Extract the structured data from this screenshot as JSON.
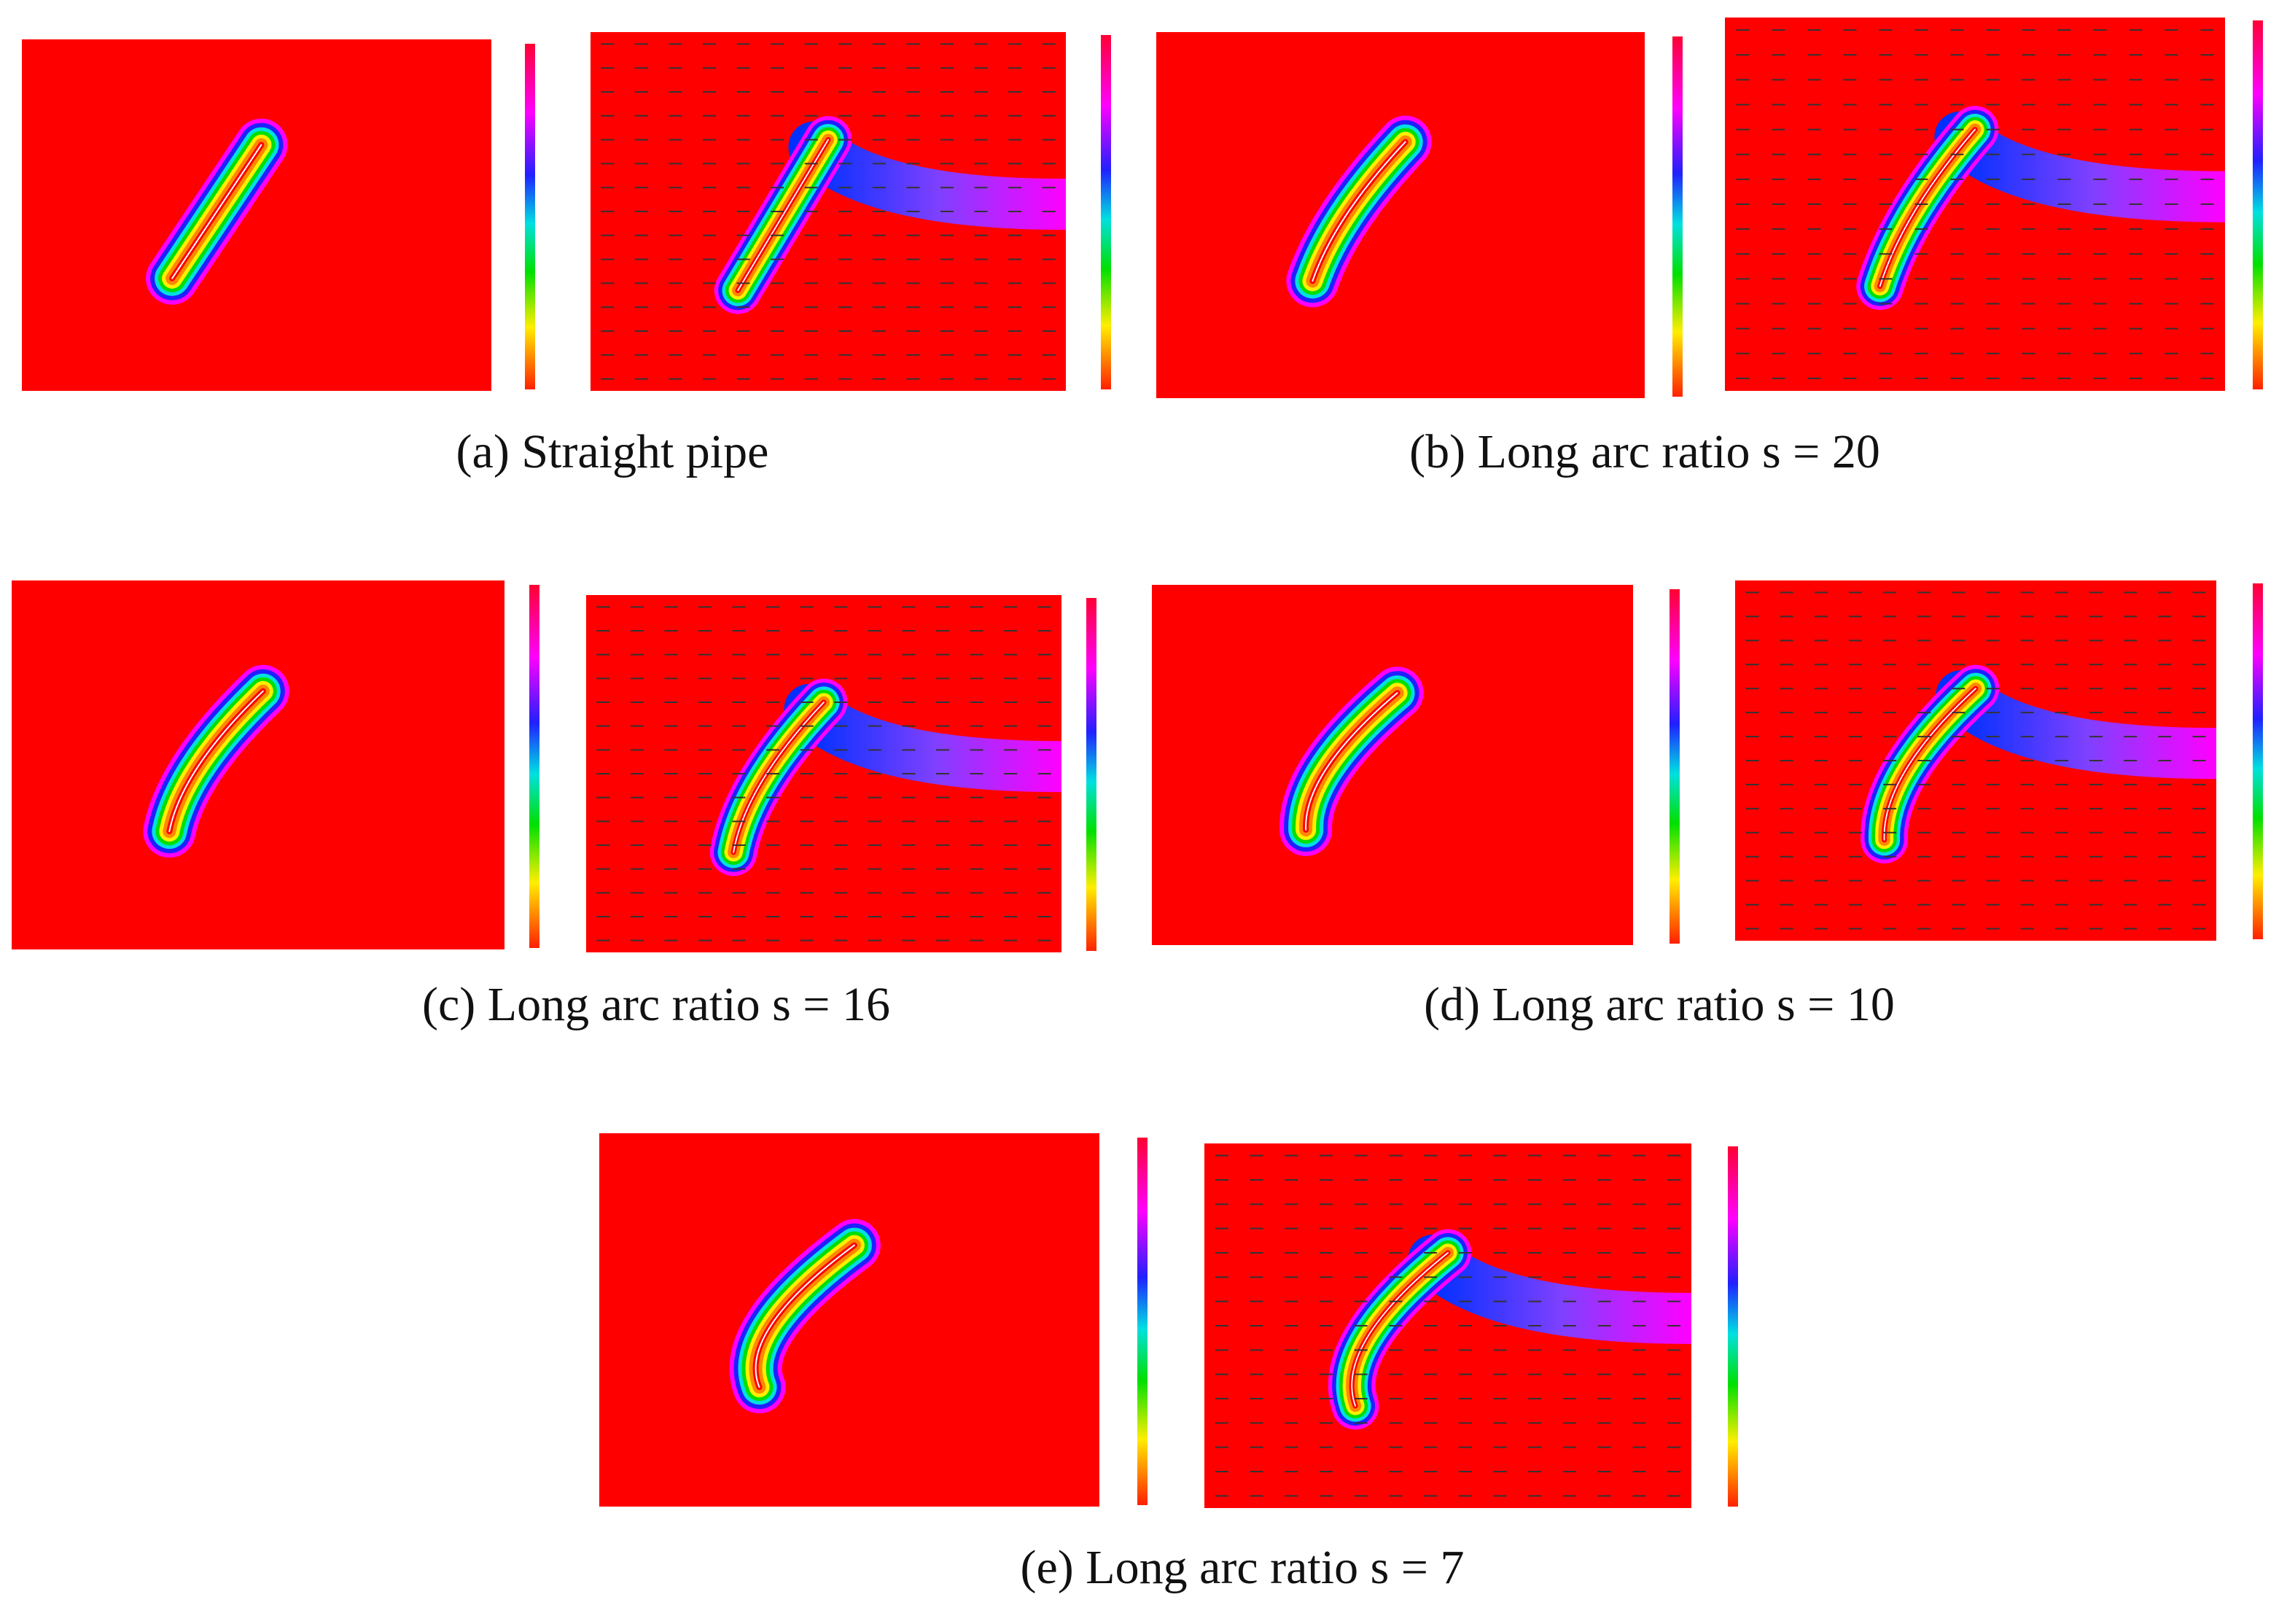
{
  "figure": {
    "panels": [
      {
        "label": "(a)",
        "caption": "Straight pipe"
      },
      {
        "label": "(b)",
        "caption": "Long arc ratio s = 20"
      },
      {
        "label": "(c)",
        "caption": "Long arc ratio s = 16"
      },
      {
        "label": "(d)",
        "caption": "Long arc ratio s = 10"
      },
      {
        "label": "(e)",
        "caption": "Long arc ratio s = 7"
      }
    ]
  }
}
